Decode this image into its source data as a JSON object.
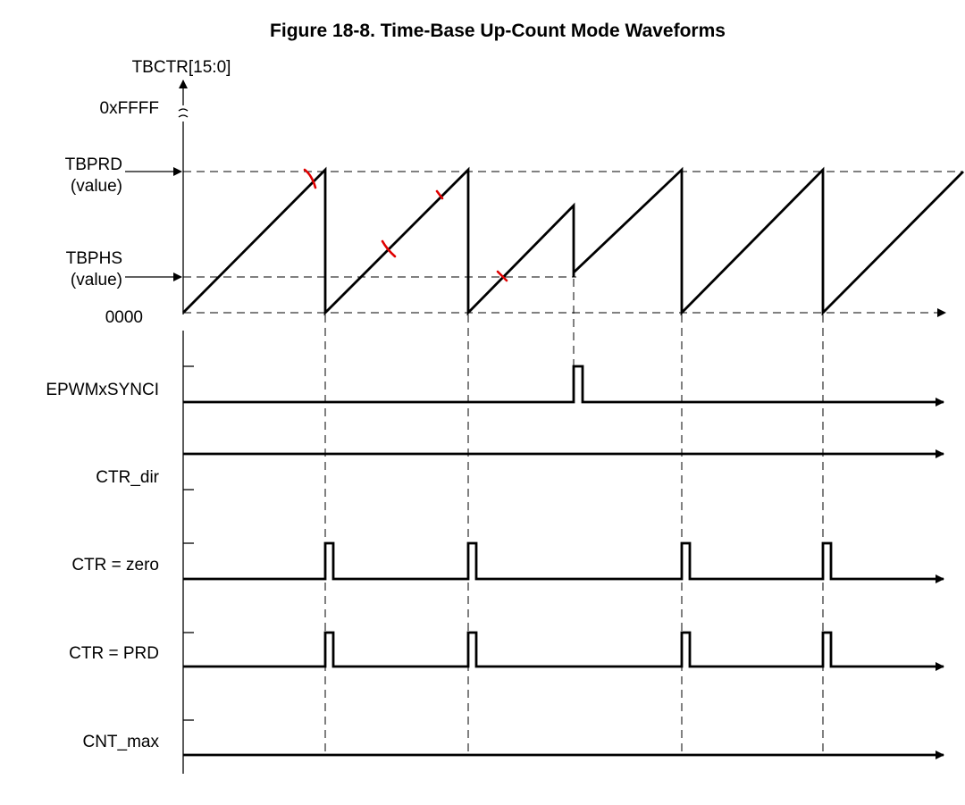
{
  "figure_title": "Figure 18-8. Time-Base Up-Count Mode Waveforms",
  "axis": {
    "y_label": "TBCTR[15:0]",
    "max_label": "0xFFFF",
    "prd_label_line1": "TBPRD",
    "prd_label_line2": "(value)",
    "phs_label_line1": "TBPHS",
    "phs_label_line2": "(value)",
    "zero_label": "0000"
  },
  "signals": {
    "syncin": "EPWMxSYNCI",
    "ctr_dir": "CTR_dir",
    "ctr_zero": "CTR = zero",
    "ctr_prd": "CTR = PRD",
    "cnt_max": "CNT_max"
  },
  "colors": {
    "line": "#000000",
    "annotation": "#e00000"
  }
}
